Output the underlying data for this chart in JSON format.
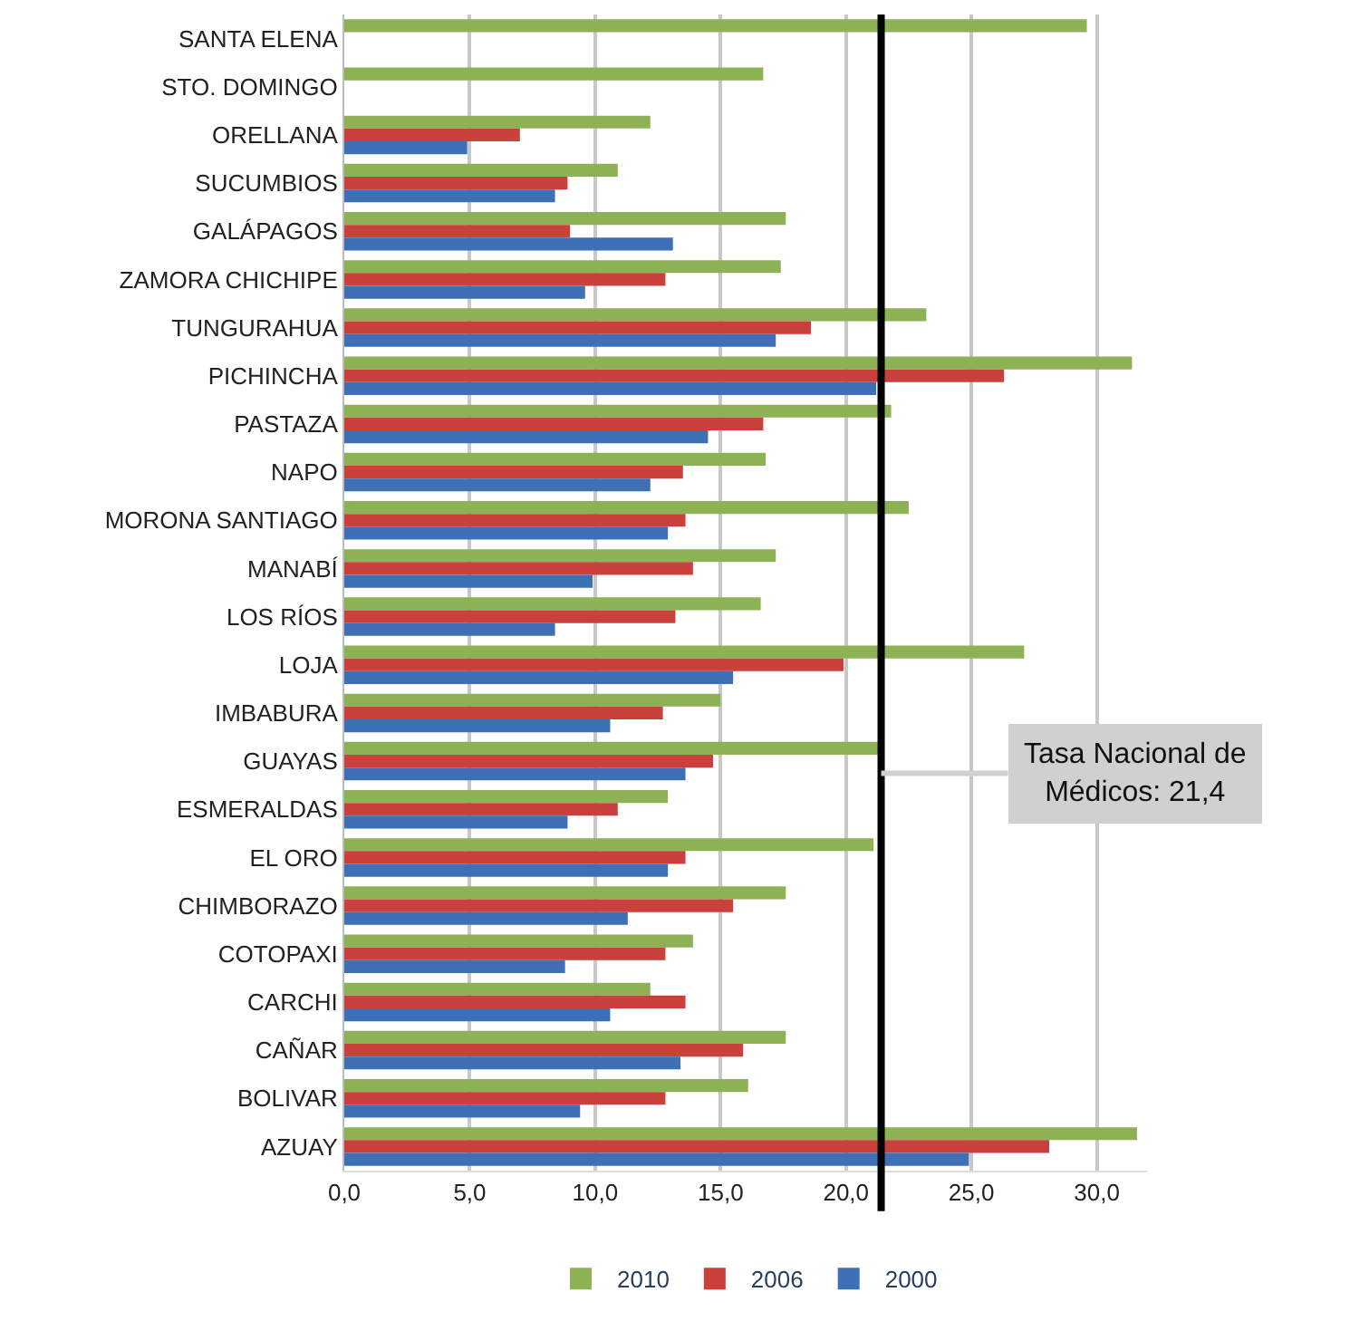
{
  "chart_data": {
    "type": "bar",
    "orientation": "horizontal",
    "categories": [
      "SANTA ELENA",
      "STO. DOMINGO",
      "ORELLANA",
      "SUCUMBIOS",
      "GALÁPAGOS",
      "ZAMORA CHICHIPE",
      "TUNGURAHUA",
      "PICHINCHA",
      "PASTAZA",
      "NAPO",
      "MORONA SANTIAGO",
      "MANABÍ",
      "LOS RÍOS",
      "LOJA",
      "IMBABURA",
      "GUAYAS",
      "ESMERALDAS",
      "EL ORO",
      "CHIMBORAZO",
      "COTOPAXI",
      "CARCHI",
      "CAÑAR",
      "BOLIVAR",
      "AZUAY"
    ],
    "series": [
      {
        "name": "2010",
        "color": "#8db255",
        "values": [
          29.6,
          16.7,
          12.2,
          10.9,
          17.6,
          17.4,
          23.2,
          31.4,
          21.8,
          16.8,
          22.5,
          17.2,
          16.6,
          27.1,
          15.0,
          21.5,
          12.9,
          21.1,
          17.6,
          13.9,
          12.2,
          17.6,
          16.1,
          31.6
        ]
      },
      {
        "name": "2006",
        "color": "#c9403d",
        "values": [
          null,
          null,
          7.0,
          8.9,
          9.0,
          12.8,
          18.6,
          26.3,
          16.7,
          13.5,
          13.6,
          13.9,
          13.2,
          19.9,
          12.7,
          14.7,
          10.9,
          13.6,
          15.5,
          12.8,
          13.6,
          15.9,
          12.8,
          28.1
        ]
      },
      {
        "name": "2000",
        "color": "#3f6fb5",
        "values": [
          null,
          null,
          4.9,
          8.4,
          13.1,
          9.6,
          17.2,
          21.2,
          14.5,
          12.2,
          12.9,
          9.9,
          8.4,
          15.5,
          10.6,
          13.6,
          8.9,
          12.9,
          11.3,
          8.8,
          10.6,
          13.4,
          9.4,
          24.9
        ]
      }
    ],
    "xlim": [
      0,
      32
    ],
    "xticks": [
      {
        "value": 0,
        "label": "0,0"
      },
      {
        "value": 5,
        "label": "5,0"
      },
      {
        "value": 10,
        "label": "10,0"
      },
      {
        "value": 15,
        "label": "15,0"
      },
      {
        "value": 20,
        "label": "20,0"
      },
      {
        "value": 25,
        "label": "25,0"
      },
      {
        "value": 30,
        "label": "30,0"
      }
    ],
    "ref_lines": [
      {
        "axis": "x",
        "value": 21.4,
        "label": "Tasa Nacional de Médicos: 21,4",
        "color": "#000000"
      }
    ],
    "grid": "x",
    "legend": "bottom"
  }
}
